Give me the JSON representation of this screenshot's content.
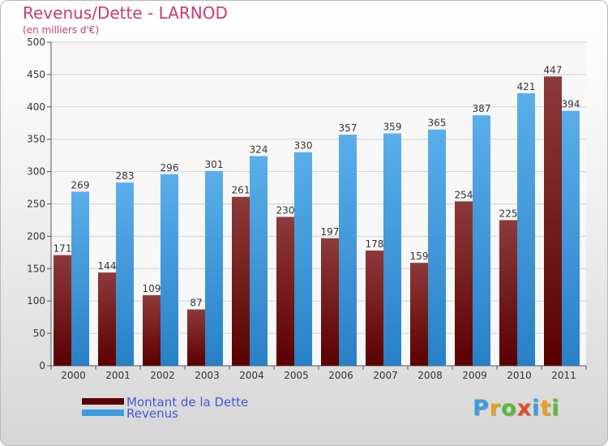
{
  "title": "Revenus/Dette - LARNOD",
  "subtitle": "(en milliers d'€)",
  "logo": {
    "text": "Proxiti"
  },
  "chart_data": {
    "type": "bar",
    "categories": [
      "2000",
      "2001",
      "2002",
      "2003",
      "2004",
      "2005",
      "2006",
      "2007",
      "2008",
      "2009",
      "2010",
      "2011"
    ],
    "series": [
      {
        "name": "Montant de la Dette",
        "values": [
          171,
          144,
          109,
          87,
          261,
          230,
          197,
          178,
          159,
          254,
          225,
          447
        ],
        "color": "#7a1a1a"
      },
      {
        "name": "Revenus",
        "values": [
          269,
          283,
          296,
          301,
          324,
          330,
          357,
          359,
          365,
          387,
          421,
          394
        ],
        "color": "#3b9de0"
      }
    ],
    "title": "Revenus/Dette - LARNOD",
    "ylabel": "(en milliers d'€)",
    "xlabel": "",
    "ylim": [
      0,
      500
    ],
    "yticks": [
      0,
      50,
      100,
      150,
      200,
      250,
      300,
      350,
      400,
      450,
      500
    ],
    "grid": true,
    "legend": "bottom-left"
  }
}
